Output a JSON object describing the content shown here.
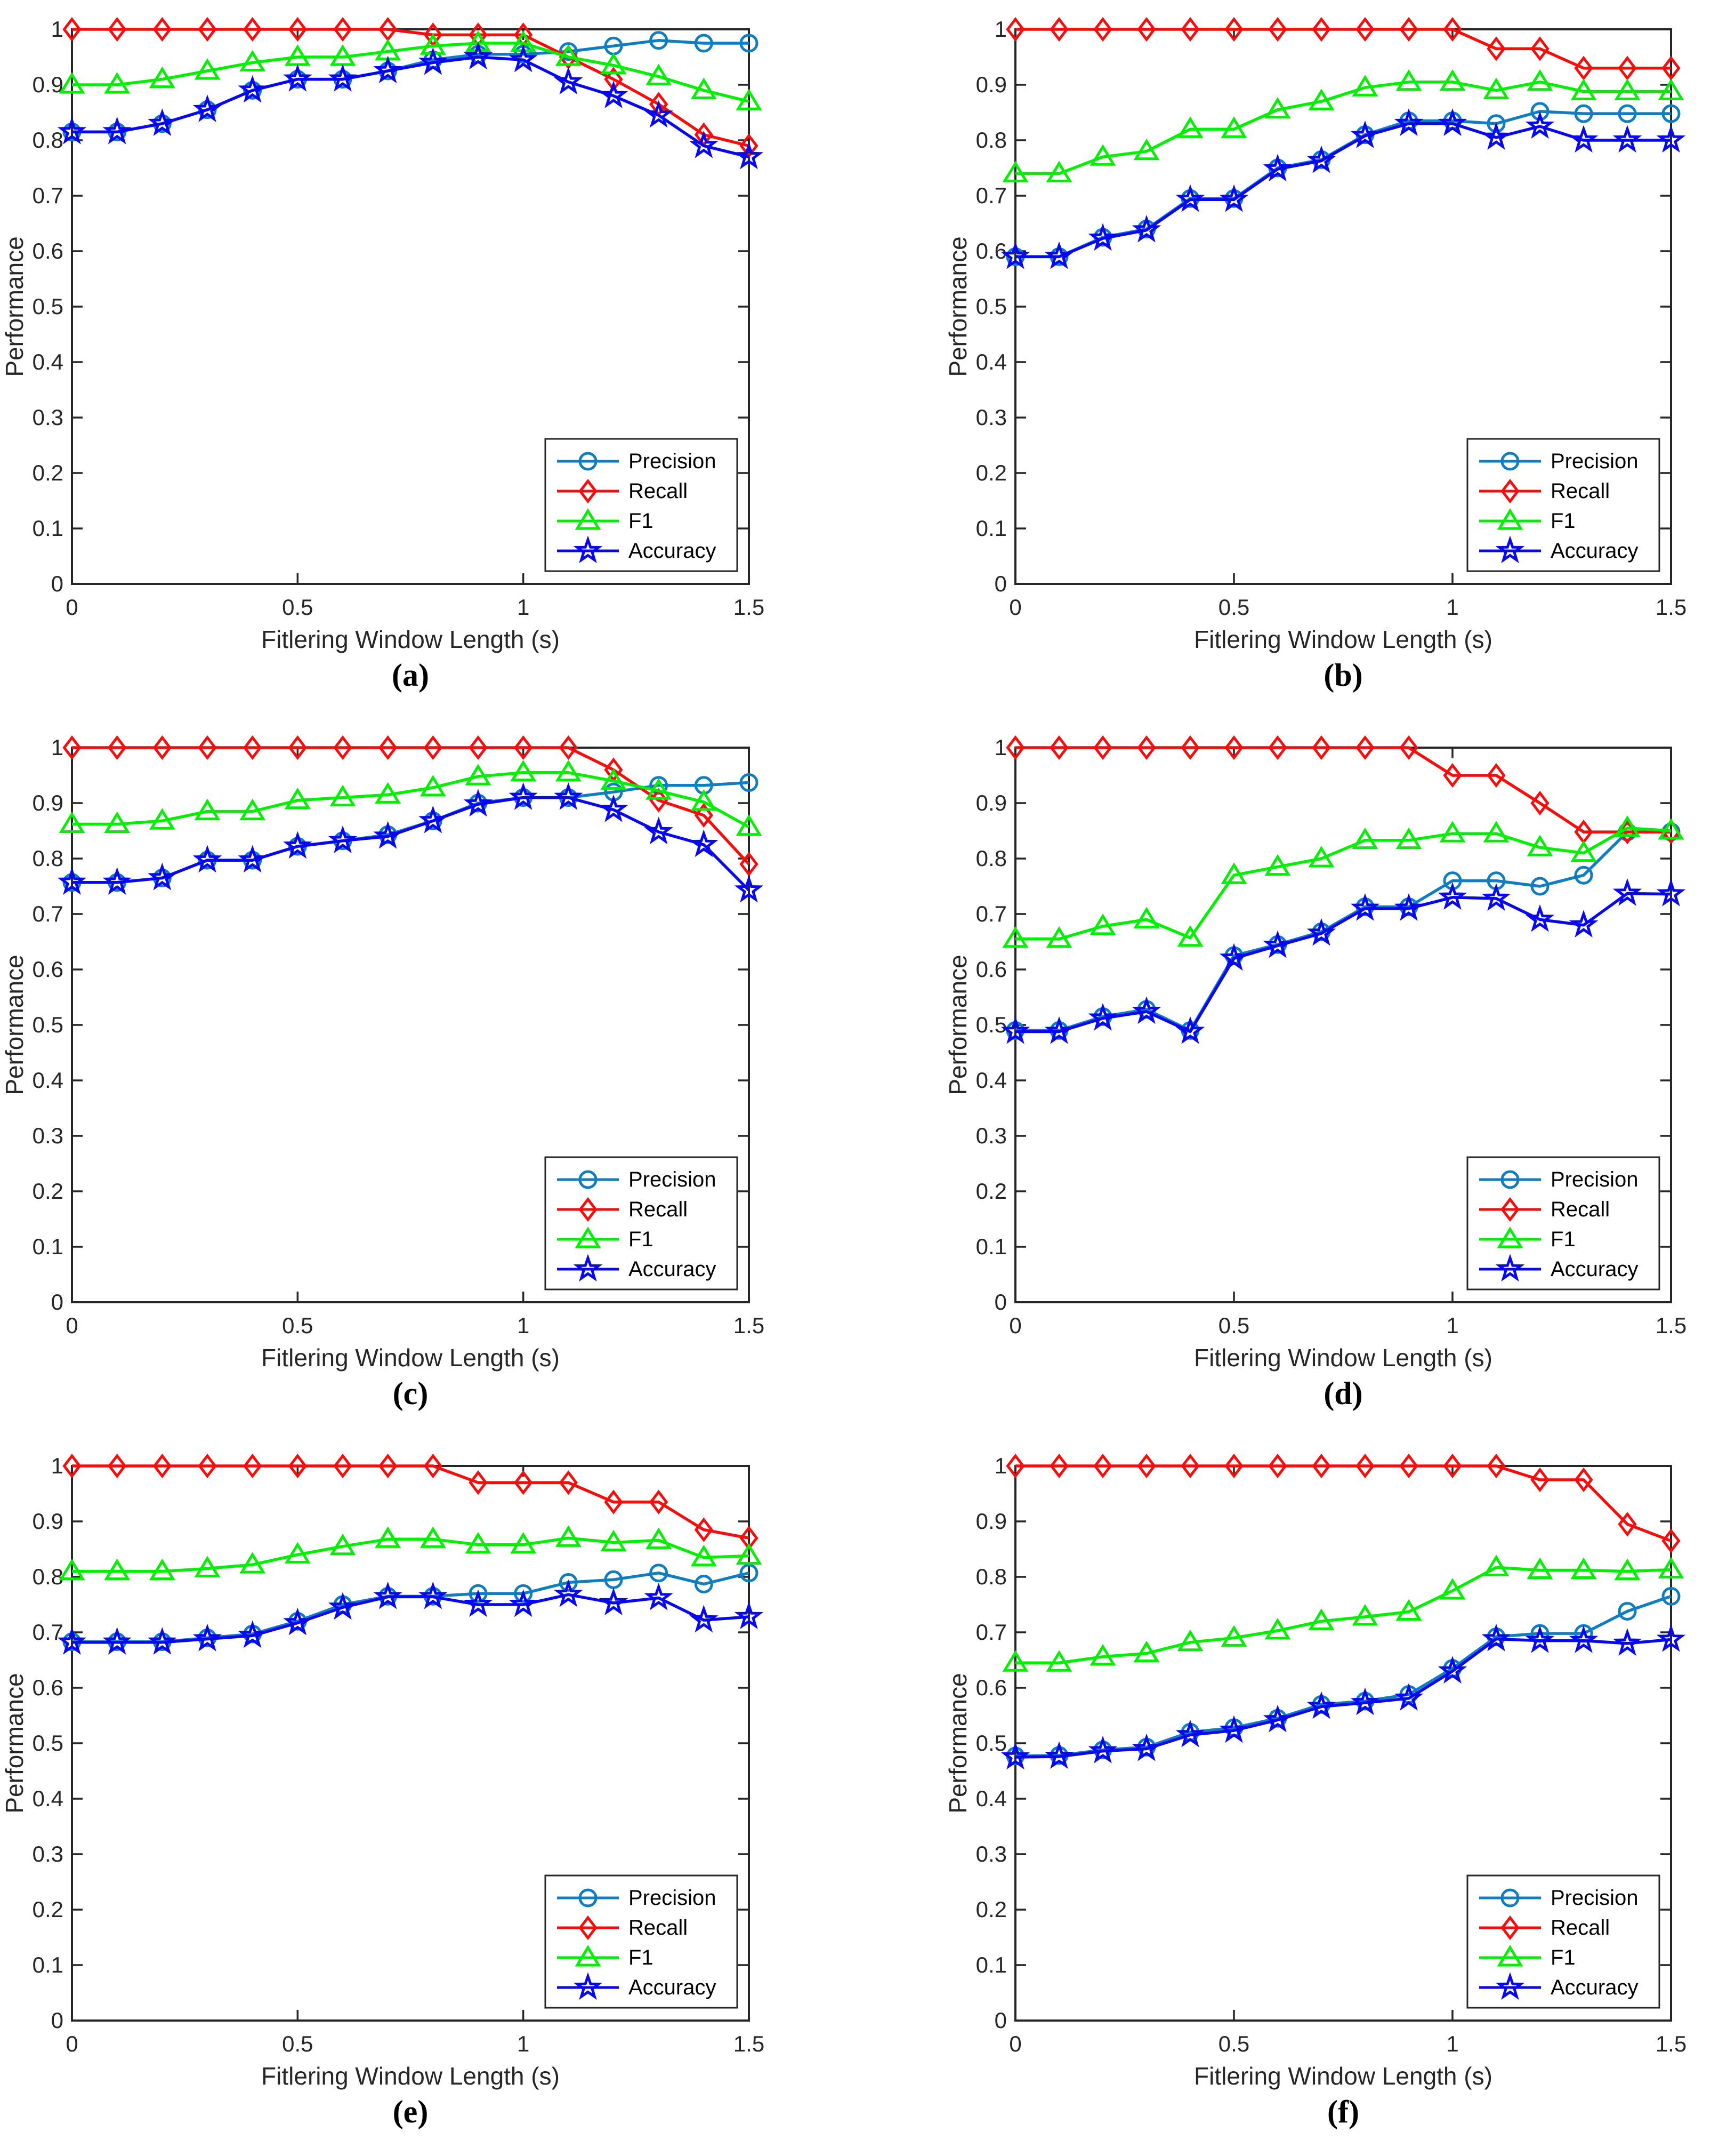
{
  "figure": {
    "background": "#ffffff",
    "axis_color": "#262626",
    "tick_label_color": "#262626",
    "axes": {
      "xlabel": "Fitlering Window Length (s)",
      "ylabel": "Performance",
      "xlim": [
        0,
        1.5
      ],
      "ylim": [
        0,
        1
      ],
      "xtick_values": [
        0,
        0.5,
        1,
        1.5
      ],
      "xtick_labels": [
        "0",
        "0.5",
        "1",
        "1.5"
      ],
      "ytick_values": [
        0,
        0.1,
        0.2,
        0.3,
        0.4,
        0.5,
        0.6,
        0.7,
        0.8,
        0.9,
        1
      ],
      "ytick_labels": [
        "0",
        "0.1",
        "0.2",
        "0.3",
        "0.4",
        "0.5",
        "0.6",
        "0.7",
        "0.8",
        "0.9",
        "1"
      ],
      "grid": false
    },
    "legend": {
      "position": "lower right",
      "entries": [
        {
          "label": "Precision",
          "marker": "circle",
          "color": "#0f7dc2"
        },
        {
          "label": "Recall",
          "marker": "diamond",
          "color": "#f80c0c"
        },
        {
          "label": "F1",
          "marker": "triangle",
          "color": "#00f000"
        },
        {
          "label": "Accuracy",
          "marker": "star",
          "color": "#0808f0"
        }
      ]
    }
  },
  "chart_data": [
    {
      "id": "a",
      "caption": "(a)",
      "type": "line",
      "xlabel": "Fitlering Window Length (s)",
      "ylabel": "Performance",
      "xlim": [
        0,
        1.5
      ],
      "ylim": [
        0,
        1
      ],
      "grid": false,
      "legend_position": "lower right",
      "x": [
        0,
        0.1,
        0.2,
        0.3,
        0.4,
        0.5,
        0.6,
        0.7,
        0.8,
        0.9,
        1,
        1.1,
        1.2,
        1.3,
        1.4,
        1.5
      ],
      "series": [
        {
          "name": "Precision",
          "values": [
            0.815,
            0.815,
            0.83,
            0.855,
            0.89,
            0.91,
            0.91,
            0.925,
            0.945,
            0.955,
            0.955,
            0.96,
            0.97,
            0.98,
            0.975,
            0.975
          ]
        },
        {
          "name": "Recall",
          "values": [
            1,
            1,
            1,
            1,
            1,
            1,
            1,
            1,
            0.99,
            0.99,
            0.99,
            0.95,
            0.91,
            0.865,
            0.81,
            0.79
          ]
        },
        {
          "name": "F1",
          "values": [
            0.9,
            0.9,
            0.91,
            0.925,
            0.94,
            0.95,
            0.95,
            0.96,
            0.97,
            0.975,
            0.975,
            0.95,
            0.935,
            0.915,
            0.89,
            0.87
          ]
        },
        {
          "name": "Accuracy",
          "values": [
            0.815,
            0.815,
            0.83,
            0.855,
            0.89,
            0.91,
            0.91,
            0.925,
            0.94,
            0.95,
            0.945,
            0.905,
            0.88,
            0.845,
            0.79,
            0.77
          ]
        }
      ]
    },
    {
      "id": "b",
      "caption": "(b)",
      "type": "line",
      "xlabel": "Fitlering Window Length (s)",
      "ylabel": "Performance",
      "xlim": [
        0,
        1.5
      ],
      "ylim": [
        0,
        1
      ],
      "grid": false,
      "legend_position": "lower right",
      "x": [
        0,
        0.1,
        0.2,
        0.3,
        0.4,
        0.5,
        0.6,
        0.7,
        0.8,
        0.9,
        1,
        1.1,
        1.2,
        1.3,
        1.4,
        1.5
      ],
      "series": [
        {
          "name": "Precision",
          "values": [
            0.59,
            0.59,
            0.625,
            0.64,
            0.695,
            0.695,
            0.75,
            0.765,
            0.81,
            0.835,
            0.835,
            0.83,
            0.852,
            0.848,
            0.848,
            0.848
          ]
        },
        {
          "name": "Recall",
          "values": [
            1,
            1,
            1,
            1,
            1,
            1,
            1,
            1,
            1,
            1,
            1,
            0.965,
            0.965,
            0.93,
            0.93,
            0.93
          ]
        },
        {
          "name": "F1",
          "values": [
            0.74,
            0.74,
            0.77,
            0.78,
            0.82,
            0.82,
            0.855,
            0.87,
            0.895,
            0.905,
            0.905,
            0.89,
            0.905,
            0.888,
            0.888,
            0.888
          ]
        },
        {
          "name": "Accuracy",
          "values": [
            0.59,
            0.59,
            0.623,
            0.638,
            0.693,
            0.693,
            0.748,
            0.763,
            0.808,
            0.83,
            0.83,
            0.805,
            0.825,
            0.8,
            0.8,
            0.8
          ]
        }
      ]
    },
    {
      "id": "c",
      "caption": "(c)",
      "type": "line",
      "xlabel": "Fitlering Window Length (s)",
      "ylabel": "Performance",
      "xlim": [
        0,
        1.5
      ],
      "ylim": [
        0,
        1
      ],
      "grid": false,
      "legend_position": "lower right",
      "x": [
        0,
        0.1,
        0.2,
        0.3,
        0.4,
        0.5,
        0.6,
        0.7,
        0.8,
        0.9,
        1,
        1.1,
        1.2,
        1.3,
        1.4,
        1.5
      ],
      "series": [
        {
          "name": "Precision",
          "values": [
            0.757,
            0.757,
            0.765,
            0.797,
            0.797,
            0.822,
            0.832,
            0.843,
            0.868,
            0.9,
            0.91,
            0.91,
            0.92,
            0.932,
            0.932,
            0.937
          ]
        },
        {
          "name": "Recall",
          "values": [
            1,
            1,
            1,
            1,
            1,
            1,
            1,
            1,
            1,
            1,
            1,
            1,
            0.96,
            0.905,
            0.878,
            0.79
          ]
        },
        {
          "name": "F1",
          "values": [
            0.862,
            0.862,
            0.868,
            0.885,
            0.885,
            0.905,
            0.91,
            0.915,
            0.928,
            0.948,
            0.955,
            0.955,
            0.94,
            0.922,
            0.902,
            0.857
          ]
        },
        {
          "name": "Accuracy",
          "values": [
            0.757,
            0.757,
            0.765,
            0.797,
            0.797,
            0.822,
            0.832,
            0.84,
            0.868,
            0.898,
            0.91,
            0.91,
            0.888,
            0.848,
            0.825,
            0.743
          ]
        }
      ]
    },
    {
      "id": "d",
      "caption": "(d)",
      "type": "line",
      "xlabel": "Fitlering Window Length (s)",
      "ylabel": "Performance",
      "xlim": [
        0,
        1.5
      ],
      "ylim": [
        0,
        1
      ],
      "grid": false,
      "legend_position": "lower right",
      "x": [
        0,
        0.1,
        0.2,
        0.3,
        0.4,
        0.5,
        0.6,
        0.7,
        0.8,
        0.9,
        1,
        1.1,
        1.2,
        1.3,
        1.4,
        1.5
      ],
      "series": [
        {
          "name": "Precision",
          "values": [
            0.49,
            0.49,
            0.515,
            0.528,
            0.49,
            0.625,
            0.645,
            0.668,
            0.713,
            0.713,
            0.76,
            0.76,
            0.75,
            0.77,
            0.848,
            0.848
          ]
        },
        {
          "name": "Recall",
          "values": [
            1,
            1,
            1,
            1,
            1,
            1,
            1,
            1,
            1,
            1,
            0.95,
            0.95,
            0.9,
            0.848,
            0.848,
            0.848
          ]
        },
        {
          "name": "F1",
          "values": [
            0.655,
            0.655,
            0.678,
            0.69,
            0.657,
            0.77,
            0.785,
            0.8,
            0.833,
            0.833,
            0.845,
            0.845,
            0.82,
            0.81,
            0.855,
            0.85
          ]
        },
        {
          "name": "Accuracy",
          "values": [
            0.488,
            0.488,
            0.512,
            0.524,
            0.488,
            0.62,
            0.643,
            0.665,
            0.71,
            0.71,
            0.73,
            0.728,
            0.69,
            0.68,
            0.737,
            0.736
          ]
        }
      ]
    },
    {
      "id": "e",
      "caption": "(e)",
      "type": "line",
      "xlabel": "Fitlering Window Length (s)",
      "ylabel": "Performance",
      "xlim": [
        0,
        1.5
      ],
      "ylim": [
        0,
        1
      ],
      "grid": false,
      "legend_position": "lower right",
      "x": [
        0,
        0.1,
        0.2,
        0.3,
        0.4,
        0.5,
        0.6,
        0.7,
        0.8,
        0.9,
        1,
        1.1,
        1.2,
        1.3,
        1.4,
        1.5
      ],
      "series": [
        {
          "name": "Precision",
          "values": [
            0.683,
            0.683,
            0.683,
            0.69,
            0.697,
            0.72,
            0.75,
            0.765,
            0.765,
            0.77,
            0.77,
            0.79,
            0.795,
            0.807,
            0.787,
            0.807
          ]
        },
        {
          "name": "Recall",
          "values": [
            1,
            1,
            1,
            1,
            1,
            1,
            1,
            1,
            1,
            0.97,
            0.97,
            0.97,
            0.935,
            0.935,
            0.885,
            0.87
          ]
        },
        {
          "name": "F1",
          "values": [
            0.81,
            0.81,
            0.81,
            0.815,
            0.822,
            0.84,
            0.855,
            0.868,
            0.868,
            0.858,
            0.858,
            0.87,
            0.862,
            0.866,
            0.835,
            0.838
          ]
        },
        {
          "name": "Accuracy",
          "values": [
            0.682,
            0.682,
            0.682,
            0.688,
            0.694,
            0.717,
            0.745,
            0.764,
            0.764,
            0.75,
            0.75,
            0.768,
            0.753,
            0.762,
            0.722,
            0.728
          ]
        }
      ]
    },
    {
      "id": "f",
      "caption": "(f)",
      "type": "line",
      "xlabel": "Fitlering Window Length (s)",
      "ylabel": "Performance",
      "xlim": [
        0,
        1.5
      ],
      "ylim": [
        0,
        1
      ],
      "grid": false,
      "legend_position": "lower right",
      "x": [
        0,
        0.1,
        0.2,
        0.3,
        0.4,
        0.5,
        0.6,
        0.7,
        0.8,
        0.9,
        1,
        1.1,
        1.2,
        1.3,
        1.4,
        1.5
      ],
      "series": [
        {
          "name": "Precision",
          "values": [
            0.477,
            0.478,
            0.488,
            0.493,
            0.52,
            0.528,
            0.545,
            0.57,
            0.576,
            0.588,
            0.635,
            0.692,
            0.698,
            0.698,
            0.738,
            0.765
          ]
        },
        {
          "name": "Recall",
          "values": [
            1,
            1,
            1,
            1,
            1,
            1,
            1,
            1,
            1,
            1,
            1,
            1,
            0.975,
            0.975,
            0.895,
            0.865
          ]
        },
        {
          "name": "F1",
          "values": [
            0.645,
            0.645,
            0.656,
            0.662,
            0.682,
            0.69,
            0.703,
            0.72,
            0.728,
            0.737,
            0.775,
            0.817,
            0.812,
            0.812,
            0.81,
            0.813
          ]
        },
        {
          "name": "Accuracy",
          "values": [
            0.475,
            0.476,
            0.486,
            0.49,
            0.515,
            0.523,
            0.542,
            0.566,
            0.573,
            0.581,
            0.63,
            0.688,
            0.685,
            0.685,
            0.68,
            0.687
          ]
        }
      ]
    }
  ]
}
